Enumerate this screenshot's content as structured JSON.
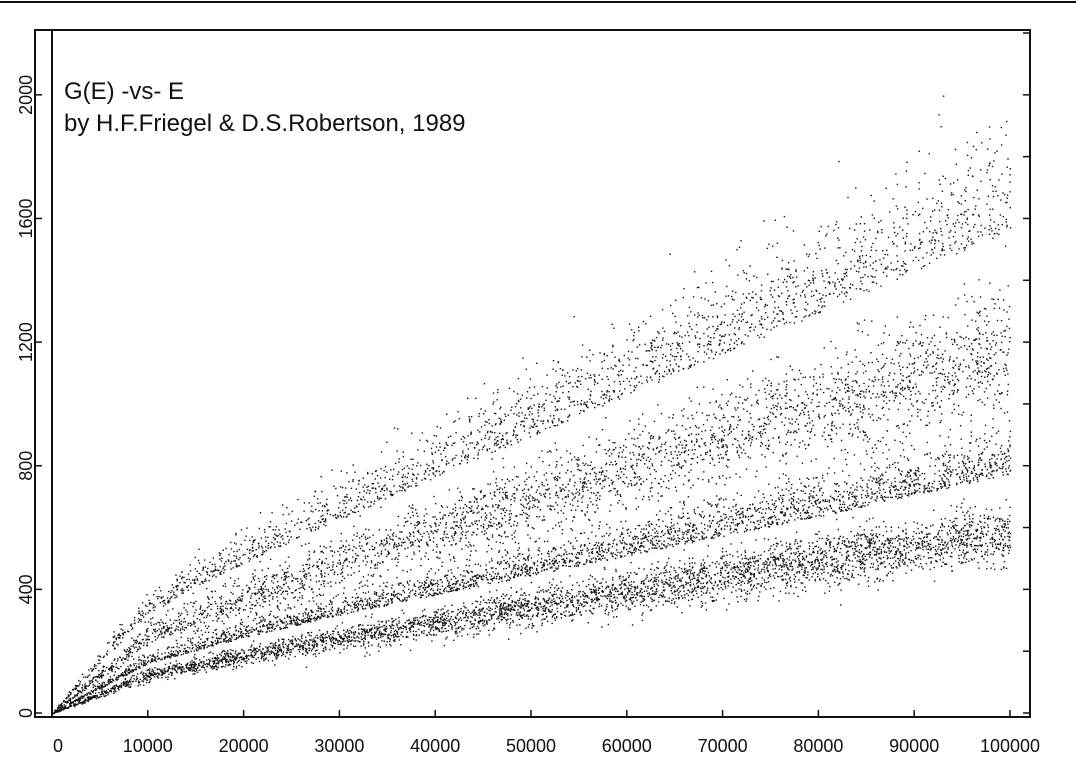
{
  "chart_data": {
    "type": "scatter",
    "title": "G(E) -vs- E",
    "subtitle": "by H.F.Friegel & D.S.Robertson, 1989",
    "xlabel": "",
    "ylabel": "",
    "xlim": [
      0,
      100000
    ],
    "ylim": [
      0,
      2200
    ],
    "x_ticks": [
      "0",
      "10000",
      "20000",
      "30000",
      "40000",
      "50000",
      "60000",
      "70000",
      "80000",
      "90000",
      "100000"
    ],
    "y_ticks": [
      "0",
      "200",
      "400",
      "600",
      "800",
      "1000",
      "1200",
      "1400",
      "1600",
      "1800",
      "2000",
      "2200"
    ],
    "grid": false,
    "point_color": "#111111",
    "series": [
      {
        "x": [
          0,
          10000,
          20000,
          30000,
          40000,
          50000,
          60000,
          70000,
          80000,
          90000,
          100000
        ],
        "y": [
          0,
          125,
          185,
          245,
          295,
          345,
          395,
          445,
          495,
          540,
          585
        ]
      },
      {
        "x": [
          0,
          10000,
          20000,
          30000,
          40000,
          50000,
          60000,
          70000,
          80000,
          90000,
          100000
        ],
        "y": [
          0,
          165,
          250,
          325,
          390,
          455,
          520,
          585,
          650,
          720,
          790
        ]
      },
      {
        "x": [
          0,
          10000,
          20000,
          30000,
          40000,
          50000,
          60000,
          70000,
          80000,
          90000,
          100000
        ],
        "y": [
          0,
          250,
          375,
          485,
          590,
          690,
          790,
          890,
          985,
          1085,
          1185
        ]
      },
      {
        "x": [
          0,
          10000,
          20000,
          30000,
          40000,
          50000,
          60000,
          70000,
          80000,
          90000,
          100000
        ],
        "y": [
          0,
          330,
          495,
          640,
          780,
          915,
          1050,
          1185,
          1320,
          1460,
          1590
        ]
      }
    ]
  }
}
